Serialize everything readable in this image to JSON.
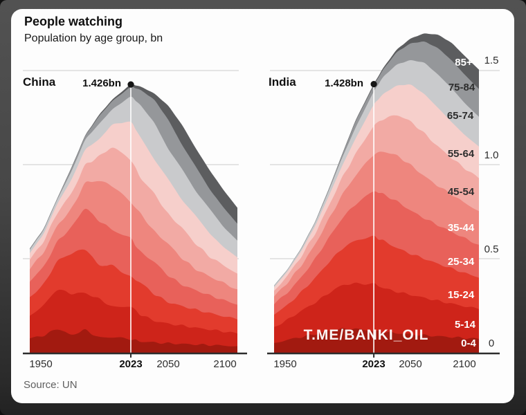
{
  "page": {
    "background": "#474747",
    "card_color": "#fdfdfd",
    "grid_color": "#d6d6d6",
    "axis_color": "#2d2d2d"
  },
  "header": {
    "title": "People watching",
    "subtitle": "Population by age group, bn"
  },
  "source": "Source: UN",
  "watermark": "T.ME/BANKI_OIL",
  "y_axis": {
    "unit": "bn",
    "ticks": [
      "1.5",
      "1.0",
      "0.5",
      "0"
    ],
    "tick_values": [
      1.5,
      1.0,
      0.5,
      0
    ]
  },
  "age_groups": [
    {
      "label": "0-4",
      "color": "#a21a10"
    },
    {
      "label": "5-14",
      "color": "#ce241a"
    },
    {
      "label": "15-24",
      "color": "#e23b2d"
    },
    {
      "label": "25-34",
      "color": "#e8615a"
    },
    {
      "label": "35-44",
      "color": "#ee867e"
    },
    {
      "label": "45-54",
      "color": "#f2aaa4"
    },
    {
      "label": "55-64",
      "color": "#f6cfcb"
    },
    {
      "label": "65-74",
      "color": "#c9cacc"
    },
    {
      "label": "75-84",
      "color": "#95979a"
    },
    {
      "label": "85+",
      "color": "#5c5d5f"
    }
  ],
  "chart_data": [
    {
      "type": "area",
      "stacked": true,
      "title": "China",
      "ylabel": "Population, bn",
      "ylim": [
        0,
        1.75
      ],
      "grid": true,
      "x": [
        1950,
        1960,
        1970,
        1980,
        1990,
        2000,
        2010,
        2023,
        2030,
        2040,
        2050,
        2060,
        2070,
        2080,
        2090,
        2100
      ],
      "x_ticks": [
        "1950",
        "2023",
        "2050",
        "2100"
      ],
      "annotation": {
        "text": "1.426bn",
        "year": 2023,
        "value_bn": 1.426
      },
      "series": [
        {
          "name": "0-4",
          "values": [
            0.076,
            0.092,
            0.127,
            0.095,
            0.12,
            0.082,
            0.082,
            0.073,
            0.06,
            0.055,
            0.05,
            0.047,
            0.044,
            0.041,
            0.038,
            0.035
          ]
        },
        {
          "name": "5-14",
          "values": [
            0.12,
            0.162,
            0.209,
            0.22,
            0.197,
            0.204,
            0.162,
            0.172,
            0.143,
            0.115,
            0.105,
            0.097,
            0.089,
            0.082,
            0.075,
            0.068
          ]
        },
        {
          "name": "15-24",
          "values": [
            0.1,
            0.11,
            0.151,
            0.213,
            0.234,
            0.181,
            0.218,
            0.157,
            0.17,
            0.142,
            0.114,
            0.104,
            0.096,
            0.088,
            0.081,
            0.074
          ]
        },
        {
          "name": "25-34",
          "values": [
            0.081,
            0.094,
            0.102,
            0.14,
            0.217,
            0.236,
            0.19,
            0.205,
            0.163,
            0.17,
            0.142,
            0.114,
            0.103,
            0.094,
            0.086,
            0.078
          ]
        },
        {
          "name": "35-44",
          "values": [
            0.066,
            0.077,
            0.086,
            0.096,
            0.133,
            0.212,
            0.234,
            0.193,
            0.204,
            0.163,
            0.168,
            0.14,
            0.112,
            0.1,
            0.091,
            0.082
          ]
        },
        {
          "name": "45-54",
          "values": [
            0.051,
            0.058,
            0.069,
            0.083,
            0.094,
            0.13,
            0.206,
            0.226,
            0.191,
            0.2,
            0.158,
            0.162,
            0.134,
            0.106,
            0.094,
            0.084
          ]
        },
        {
          "name": "55-64",
          "values": [
            0.035,
            0.04,
            0.048,
            0.072,
            0.083,
            0.09,
            0.122,
            0.201,
            0.215,
            0.182,
            0.187,
            0.148,
            0.15,
            0.123,
            0.097,
            0.086
          ]
        },
        {
          "name": "65-74",
          "values": [
            0.018,
            0.02,
            0.023,
            0.044,
            0.053,
            0.081,
            0.082,
            0.134,
            0.17,
            0.195,
            0.16,
            0.165,
            0.13,
            0.131,
            0.107,
            0.089
          ]
        },
        {
          "name": "75-84",
          "values": [
            0.006,
            0.006,
            0.007,
            0.017,
            0.02,
            0.041,
            0.044,
            0.052,
            0.081,
            0.122,
            0.155,
            0.128,
            0.131,
            0.104,
            0.103,
            0.09
          ]
        },
        {
          "name": "85+",
          "values": [
            0.001,
            0.001,
            0.001,
            0.003,
            0.003,
            0.007,
            0.008,
            0.013,
            0.018,
            0.034,
            0.074,
            0.106,
            0.097,
            0.101,
            0.093,
            0.085
          ]
        }
      ]
    },
    {
      "type": "area",
      "stacked": true,
      "title": "India",
      "ylabel": "Population, bn",
      "ylim": [
        0,
        1.75
      ],
      "grid": true,
      "x": [
        1950,
        1960,
        1970,
        1980,
        1990,
        2000,
        2010,
        2023,
        2030,
        2040,
        2050,
        2060,
        2070,
        2080,
        2090,
        2100
      ],
      "x_ticks": [
        "1950",
        "2023",
        "2050",
        "2100"
      ],
      "annotation": {
        "text": "1.428bn",
        "year": 2023,
        "value_bn": 1.428
      },
      "series": [
        {
          "name": "0-4",
          "values": [
            0.052,
            0.069,
            0.084,
            0.099,
            0.116,
            0.126,
            0.126,
            0.116,
            0.11,
            0.104,
            0.098,
            0.093,
            0.088,
            0.083,
            0.078,
            0.074
          ]
        },
        {
          "name": "5-14",
          "values": [
            0.085,
            0.107,
            0.139,
            0.167,
            0.201,
            0.234,
            0.242,
            0.25,
            0.234,
            0.22,
            0.21,
            0.199,
            0.188,
            0.178,
            0.168,
            0.158
          ]
        },
        {
          "name": "15-24",
          "values": [
            0.065,
            0.079,
            0.1,
            0.131,
            0.163,
            0.194,
            0.23,
            0.252,
            0.251,
            0.233,
            0.218,
            0.208,
            0.197,
            0.187,
            0.177,
            0.167
          ]
        },
        {
          "name": "25-34",
          "values": [
            0.055,
            0.066,
            0.079,
            0.101,
            0.13,
            0.162,
            0.194,
            0.241,
            0.248,
            0.247,
            0.23,
            0.215,
            0.205,
            0.195,
            0.184,
            0.175
          ]
        },
        {
          "name": "35-44",
          "values": [
            0.042,
            0.053,
            0.063,
            0.077,
            0.098,
            0.125,
            0.153,
            0.196,
            0.227,
            0.244,
            0.241,
            0.224,
            0.209,
            0.198,
            0.188,
            0.179
          ]
        },
        {
          "name": "45-54",
          "values": [
            0.03,
            0.038,
            0.048,
            0.058,
            0.072,
            0.091,
            0.115,
            0.152,
            0.173,
            0.216,
            0.232,
            0.227,
            0.209,
            0.194,
            0.183,
            0.175
          ]
        },
        {
          "name": "55-64",
          "values": [
            0.018,
            0.022,
            0.029,
            0.04,
            0.052,
            0.064,
            0.083,
            0.112,
            0.133,
            0.156,
            0.196,
            0.209,
            0.206,
            0.191,
            0.177,
            0.168
          ]
        },
        {
          "name": "65-74",
          "values": [
            0.008,
            0.009,
            0.012,
            0.018,
            0.028,
            0.043,
            0.058,
            0.07,
            0.091,
            0.112,
            0.13,
            0.166,
            0.177,
            0.18,
            0.169,
            0.158
          ]
        },
        {
          "name": "75-84",
          "values": [
            0.002,
            0.002,
            0.003,
            0.004,
            0.009,
            0.017,
            0.034,
            0.032,
            0.04,
            0.066,
            0.089,
            0.113,
            0.14,
            0.148,
            0.151,
            0.148
          ]
        },
        {
          "name": "85+",
          "values": [
            0.0,
            0.0,
            0.001,
            0.001,
            0.001,
            0.003,
            0.005,
            0.007,
            0.008,
            0.014,
            0.026,
            0.043,
            0.071,
            0.093,
            0.1,
            0.103
          ]
        }
      ]
    }
  ]
}
